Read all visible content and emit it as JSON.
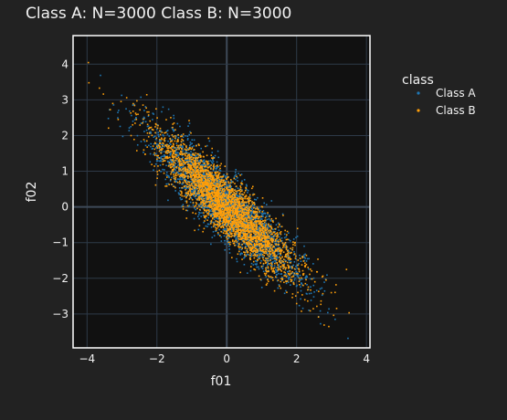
{
  "title": "Class A: N=3000   Class B: N=3000",
  "chart_data": {
    "type": "scatter",
    "xlabel": "f01",
    "ylabel": "f02",
    "xlim": [
      -4.4,
      4.1
    ],
    "ylim": [
      -3.95,
      4.8
    ],
    "xticks": [
      -4,
      -2,
      0,
      2,
      4
    ],
    "yticks": [
      -3,
      -2,
      -1,
      0,
      1,
      2,
      3,
      4
    ],
    "grid": true,
    "legend": {
      "title": "class",
      "placement": "right"
    },
    "series": [
      {
        "name": "Class A",
        "color": "#1f77b4",
        "n": 3000,
        "mean": [
          0,
          0
        ],
        "std": [
          1,
          1
        ],
        "correlation": -0.9
      },
      {
        "name": "Class B",
        "color": "#ff9f0a",
        "n": 3000,
        "mean": [
          0,
          0
        ],
        "std": [
          1,
          1
        ],
        "correlation": -0.9
      }
    ]
  },
  "colors": {
    "background": "#222222",
    "plot_background": "#111111",
    "grid": "#2e3a48",
    "zero_line": "#3e4a58",
    "frame": "#ffffff",
    "text": "#f2f2f2"
  }
}
